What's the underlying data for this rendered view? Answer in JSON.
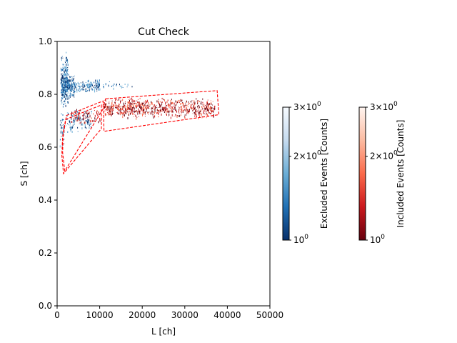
{
  "chart_data": {
    "type": "heatmap",
    "title": "Cut Check",
    "xlabel": "L [ch]",
    "ylabel": "S [ch]",
    "xlim": [
      0,
      50000
    ],
    "ylim": [
      0,
      1.0
    ],
    "xticks": [
      0,
      10000,
      20000,
      30000,
      40000,
      50000
    ],
    "xtick_labels": [
      "0",
      "10000",
      "20000",
      "30000",
      "40000",
      "50000"
    ],
    "yticks": [
      0.0,
      0.2,
      0.4,
      0.6,
      0.8,
      1.0
    ],
    "ytick_labels": [
      "0.0",
      "0.2",
      "0.4",
      "0.6",
      "0.8",
      "1.0"
    ],
    "grid": false,
    "colorbars": [
      {
        "label": "Excluded Events [Counts]",
        "colormap": "Blues_r",
        "scale": "log",
        "range": [
          1,
          3
        ],
        "tick_labels": [
          {
            "value": 1,
            "base": "10",
            "exp": "0",
            "mult": ""
          },
          {
            "value": 2,
            "base": "10",
            "exp": "0",
            "mult": "2×"
          },
          {
            "value": 3,
            "base": "10",
            "exp": "0",
            "mult": "3×"
          }
        ],
        "colors": [
          "#08306b",
          "#2171b5",
          "#6baed6",
          "#c6dbef",
          "#f7fbff"
        ]
      },
      {
        "label": "Included Events [Counts]",
        "colormap": "Reds_r",
        "scale": "log",
        "range": [
          1,
          3
        ],
        "tick_labels": [
          {
            "value": 1,
            "base": "10",
            "exp": "0",
            "mult": ""
          },
          {
            "value": 2,
            "base": "10",
            "exp": "0",
            "mult": "2×"
          },
          {
            "value": 3,
            "base": "10",
            "exp": "0",
            "mult": "3×"
          }
        ],
        "colors": [
          "#67000d",
          "#cb181d",
          "#fb6a4a",
          "#fcbba1",
          "#fff5f0"
        ]
      }
    ],
    "cut_polygons": [
      {
        "name": "",
        "color": "#ff0000",
        "style": "dashed",
        "points": [
          [
            2200,
            0.72
          ],
          [
            10800,
            0.775
          ],
          [
            10800,
            0.745
          ],
          [
            1800,
            0.51
          ],
          [
            1300,
            0.58
          ],
          [
            1400,
            0.64
          ]
        ]
      },
      {
        "name": "",
        "color": "#ff0000",
        "style": "dashed",
        "points": [
          [
            2000,
            0.705
          ],
          [
            10400,
            0.76
          ],
          [
            10400,
            0.67
          ],
          [
            1500,
            0.5
          ],
          [
            1100,
            0.57
          ],
          [
            1300,
            0.64
          ]
        ]
      },
      {
        "name": "",
        "color": "#ff0000",
        "style": "dashed",
        "points": [
          [
            11400,
            0.783
          ],
          [
            37600,
            0.814
          ],
          [
            38000,
            0.723
          ],
          [
            11000,
            0.66
          ],
          [
            10900,
            0.758
          ]
        ]
      }
    ],
    "excluded_clusters": [
      {
        "l_range": [
          800,
          2500
        ],
        "s_range": [
          0.74,
          0.97
        ],
        "density": 0.7
      },
      {
        "l_range": [
          1000,
          4000
        ],
        "s_range": [
          0.78,
          0.88
        ],
        "density": 0.9
      },
      {
        "l_range": [
          4000,
          10000
        ],
        "s_range": [
          0.81,
          0.86
        ],
        "density": 0.6
      },
      {
        "l_range": [
          10000,
          18000
        ],
        "s_range": [
          0.82,
          0.85
        ],
        "density": 0.12
      },
      {
        "l_range": [
          2000,
          8000
        ],
        "s_range": [
          0.65,
          0.75
        ],
        "density": 0.25
      },
      {
        "l_range": [
          600,
          1600
        ],
        "s_range": [
          0.6,
          0.75
        ],
        "density": 0.3
      }
    ],
    "included_clusters": [
      {
        "l_range": [
          11000,
          37000
        ],
        "s_range": [
          0.71,
          0.79
        ],
        "density": 0.5
      },
      {
        "l_range": [
          3000,
          10000
        ],
        "s_range": [
          0.69,
          0.75
        ],
        "density": 0.25
      }
    ]
  }
}
